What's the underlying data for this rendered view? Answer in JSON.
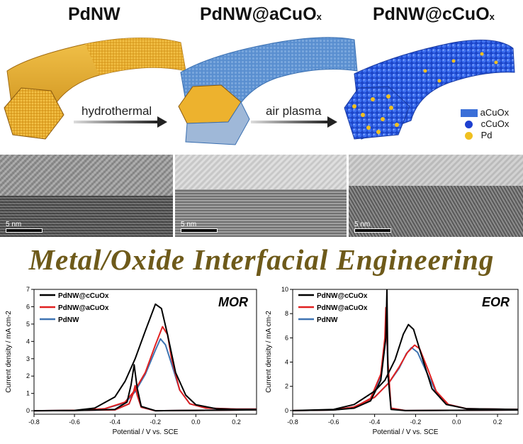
{
  "schematic": {
    "label_pdnw": "PdNW",
    "label_acuox_base": "PdNW@aCuO",
    "label_acuox_sub": "x",
    "label_ccuox_base": "PdNW@cCuO",
    "label_ccuox_sub": "x",
    "arrow1": "hydrothermal",
    "arrow2": "air plasma",
    "legend": [
      {
        "label": "aCuOx",
        "color": "#3a6fd8",
        "shape": "rect"
      },
      {
        "label": "cCuOx",
        "color": "#1e40d0",
        "shape": "circle"
      },
      {
        "label": "Pd",
        "color": "#f0c020",
        "shape": "circle"
      }
    ]
  },
  "tem": {
    "scale_labels": [
      "5 nm",
      "5 nm",
      "5 nm"
    ]
  },
  "headline": "Metal/Oxide Interfacial Engineering",
  "colors": {
    "gold": "#e8b030",
    "blue": "#2a62d8",
    "black": "#000000",
    "red": "#e02020",
    "steel": "#3f74b2"
  },
  "chart_data": [
    {
      "type": "line",
      "title": "MOR",
      "xlabel": "Potential / V vs. SCE",
      "ylabel": "Current density / mA cm-2",
      "xlim": [
        -0.8,
        0.3
      ],
      "ylim": [
        -0.2,
        7
      ],
      "xticks": [
        "-0.8",
        "-0.6",
        "-0.4",
        "-0.2",
        "0.0",
        "0.2"
      ],
      "yticks": [
        "0",
        "1",
        "2",
        "3",
        "4",
        "5",
        "6",
        "7"
      ],
      "series": [
        {
          "name": "PdNW@cCuOx",
          "color": "#000000",
          "forward": [
            [
              -0.8,
              0
            ],
            [
              -0.6,
              0.02
            ],
            [
              -0.5,
              0.15
            ],
            [
              -0.4,
              0.8
            ],
            [
              -0.35,
              1.7
            ],
            [
              -0.3,
              3.0
            ],
            [
              -0.25,
              4.6
            ],
            [
              -0.2,
              6.15
            ],
            [
              -0.17,
              5.9
            ],
            [
              -0.14,
              4.4
            ],
            [
              -0.1,
              2.2
            ],
            [
              -0.05,
              0.9
            ],
            [
              0.0,
              0.35
            ],
            [
              0.1,
              0.12
            ],
            [
              0.2,
              0.08
            ],
            [
              0.3,
              0.08
            ]
          ],
          "backward": [
            [
              0.3,
              0.05
            ],
            [
              0.0,
              0.02
            ],
            [
              -0.2,
              0
            ],
            [
              -0.27,
              0.25
            ],
            [
              -0.29,
              1.3
            ],
            [
              -0.305,
              2.65
            ],
            [
              -0.32,
              1.5
            ],
            [
              -0.34,
              0.5
            ],
            [
              -0.4,
              0.08
            ],
            [
              -0.6,
              0.01
            ],
            [
              -0.8,
              0
            ]
          ]
        },
        {
          "name": "PdNW@aCuOx",
          "color": "#e02020",
          "forward": [
            [
              -0.8,
              0
            ],
            [
              -0.6,
              0.01
            ],
            [
              -0.45,
              0.12
            ],
            [
              -0.35,
              0.5
            ],
            [
              -0.3,
              1.2
            ],
            [
              -0.25,
              2.2
            ],
            [
              -0.2,
              3.8
            ],
            [
              -0.165,
              4.85
            ],
            [
              -0.14,
              4.4
            ],
            [
              -0.12,
              3.0
            ],
            [
              -0.08,
              1.2
            ],
            [
              -0.03,
              0.4
            ],
            [
              0.05,
              0.15
            ],
            [
              0.2,
              0.1
            ],
            [
              0.3,
              0.1
            ]
          ],
          "backward": [
            [
              0.3,
              0.05
            ],
            [
              0.0,
              0.02
            ],
            [
              -0.2,
              0
            ],
            [
              -0.27,
              0.2
            ],
            [
              -0.29,
              0.9
            ],
            [
              -0.3,
              1.45
            ],
            [
              -0.31,
              1.0
            ],
            [
              -0.33,
              0.4
            ],
            [
              -0.4,
              0.05
            ],
            [
              -0.8,
              0
            ]
          ]
        },
        {
          "name": "PdNW",
          "color": "#3f74b2",
          "forward": [
            [
              -0.8,
              0
            ],
            [
              -0.6,
              0.01
            ],
            [
              -0.45,
              0.12
            ],
            [
              -0.35,
              0.45
            ],
            [
              -0.3,
              1.1
            ],
            [
              -0.25,
              2.1
            ],
            [
              -0.2,
              3.5
            ],
            [
              -0.175,
              4.15
            ],
            [
              -0.15,
              3.8
            ],
            [
              -0.12,
              2.7
            ],
            [
              -0.08,
              1.2
            ],
            [
              -0.03,
              0.4
            ],
            [
              0.05,
              0.15
            ],
            [
              0.2,
              0.1
            ],
            [
              0.3,
              0.1
            ]
          ],
          "backward": [
            [
              0.3,
              0.05
            ],
            [
              0.0,
              0.02
            ],
            [
              -0.2,
              0
            ],
            [
              -0.27,
              0.2
            ],
            [
              -0.29,
              0.9
            ],
            [
              -0.3,
              1.45
            ],
            [
              -0.31,
              1.0
            ],
            [
              -0.33,
              0.4
            ],
            [
              -0.4,
              0.05
            ],
            [
              -0.8,
              0
            ]
          ]
        }
      ]
    },
    {
      "type": "line",
      "title": "EOR",
      "xlabel": "Potential / V vs. SCE",
      "ylabel": "Current density / mA cm-2",
      "xlim": [
        -0.8,
        0.3
      ],
      "ylim": [
        -0.3,
        10
      ],
      "xticks": [
        "-0.8",
        "-0.6",
        "-0.4",
        "-0.2",
        "0.0",
        "0.2"
      ],
      "yticks": [
        "0",
        "2",
        "4",
        "6",
        "8",
        "10"
      ],
      "series": [
        {
          "name": "PdNW@cCuOx",
          "color": "#000000",
          "forward": [
            [
              -0.8,
              0
            ],
            [
              -0.6,
              0.1
            ],
            [
              -0.5,
              0.5
            ],
            [
              -0.4,
              1.6
            ],
            [
              -0.35,
              2.5
            ],
            [
              -0.3,
              4.2
            ],
            [
              -0.26,
              6.3
            ],
            [
              -0.235,
              7.1
            ],
            [
              -0.21,
              6.7
            ],
            [
              -0.17,
              4.5
            ],
            [
              -0.12,
              1.8
            ],
            [
              -0.05,
              0.5
            ],
            [
              0.05,
              0.15
            ],
            [
              0.3,
              0.1
            ]
          ],
          "backward": [
            [
              0.3,
              0.05
            ],
            [
              0.0,
              0.02
            ],
            [
              -0.25,
              0
            ],
            [
              -0.32,
              0.1
            ],
            [
              -0.335,
              3.0
            ],
            [
              -0.34,
              10
            ],
            [
              -0.345,
              6.0
            ],
            [
              -0.37,
              2.5
            ],
            [
              -0.42,
              0.8
            ],
            [
              -0.5,
              0.2
            ],
            [
              -0.6,
              0.05
            ],
            [
              -0.8,
              0
            ]
          ]
        },
        {
          "name": "PdNW@aCuOx",
          "color": "#e02020",
          "forward": [
            [
              -0.8,
              0
            ],
            [
              -0.6,
              0.05
            ],
            [
              -0.5,
              0.3
            ],
            [
              -0.4,
              1.1
            ],
            [
              -0.33,
              2.3
            ],
            [
              -0.28,
              3.6
            ],
            [
              -0.24,
              4.8
            ],
            [
              -0.205,
              5.4
            ],
            [
              -0.18,
              5.1
            ],
            [
              -0.14,
              3.4
            ],
            [
              -0.1,
              1.6
            ],
            [
              -0.04,
              0.5
            ],
            [
              0.05,
              0.15
            ],
            [
              0.3,
              0.1
            ]
          ],
          "backward": [
            [
              0.3,
              0.05
            ],
            [
              0.0,
              0.02
            ],
            [
              -0.25,
              0
            ],
            [
              -0.32,
              0.2
            ],
            [
              -0.335,
              4.0
            ],
            [
              -0.345,
              8.5
            ],
            [
              -0.35,
              6.0
            ],
            [
              -0.37,
              3.0
            ],
            [
              -0.42,
              1.0
            ],
            [
              -0.5,
              0.25
            ],
            [
              -0.6,
              0.05
            ],
            [
              -0.8,
              0
            ]
          ]
        },
        {
          "name": "PdNW",
          "color": "#3f74b2",
          "forward": [
            [
              -0.8,
              0
            ],
            [
              -0.6,
              0.05
            ],
            [
              -0.5,
              0.3
            ],
            [
              -0.4,
              1.1
            ],
            [
              -0.33,
              2.3
            ],
            [
              -0.28,
              3.5
            ],
            [
              -0.245,
              4.7
            ],
            [
              -0.22,
              5.2
            ],
            [
              -0.19,
              4.8
            ],
            [
              -0.15,
              3.3
            ],
            [
              -0.1,
              1.5
            ],
            [
              -0.04,
              0.5
            ],
            [
              0.05,
              0.15
            ],
            [
              0.3,
              0.1
            ]
          ],
          "backward": [
            [
              0.3,
              0.05
            ],
            [
              0.0,
              0.02
            ],
            [
              -0.25,
              0
            ],
            [
              -0.32,
              0.2
            ],
            [
              -0.335,
              3.5
            ],
            [
              -0.345,
              7.8
            ],
            [
              -0.35,
              5.5
            ],
            [
              -0.37,
              2.8
            ],
            [
              -0.42,
              1.0
            ],
            [
              -0.5,
              0.25
            ],
            [
              -0.6,
              0.05
            ],
            [
              -0.8,
              0
            ]
          ]
        }
      ]
    }
  ]
}
